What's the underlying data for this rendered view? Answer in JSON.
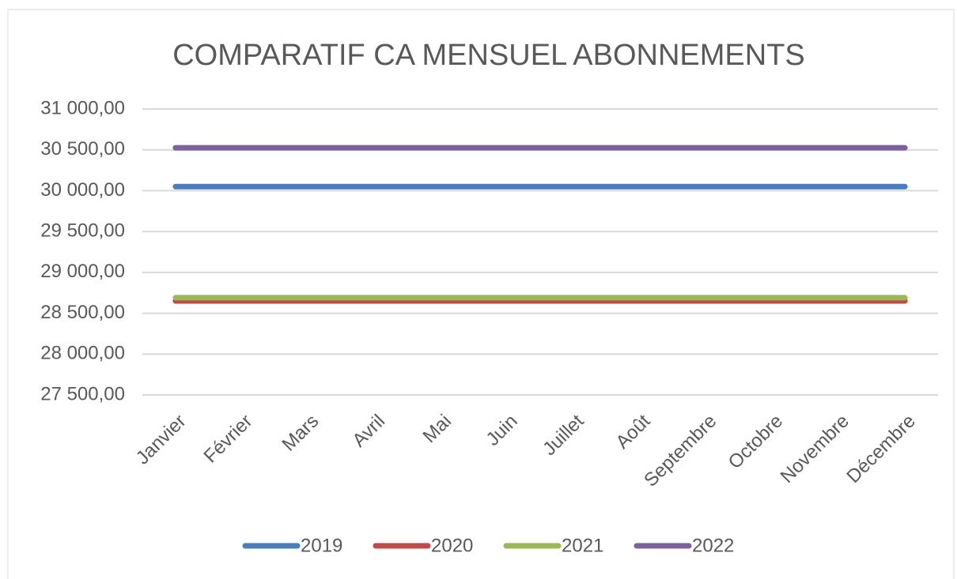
{
  "chart_data": {
    "type": "line",
    "title": "COMPARATIF CA MENSUEL ABONNEMENTS",
    "categories": [
      "Janvier",
      "Février",
      "Mars",
      "Avril",
      "Mai",
      "Juin",
      "Juillet",
      "Août",
      "Septembre",
      "Octobre",
      "Novembre",
      "Décembre"
    ],
    "series": [
      {
        "name": "2019",
        "color": "#4a7ebb",
        "values": [
          30050,
          30050,
          30050,
          30050,
          30050,
          30050,
          30050,
          30050,
          30050,
          30050,
          30050,
          30050
        ]
      },
      {
        "name": "2020",
        "color": "#be4b48",
        "values": [
          28650,
          28650,
          28650,
          28650,
          28650,
          28650,
          28650,
          28650,
          28650,
          28650,
          28650,
          28650
        ]
      },
      {
        "name": "2021",
        "color": "#98b954",
        "values": [
          28690,
          28690,
          28690,
          28690,
          28690,
          28690,
          28690,
          28690,
          28690,
          28690,
          28690,
          28690
        ]
      },
      {
        "name": "2022",
        "color": "#7d60a0",
        "values": [
          30525,
          30525,
          30525,
          30525,
          30525,
          30525,
          30525,
          30525,
          30525,
          30525,
          30525,
          30525
        ]
      }
    ],
    "ylim": [
      27500,
      31000
    ],
    "yticks": [
      {
        "value": 27500,
        "label": "27 500,00"
      },
      {
        "value": 28000,
        "label": "28 000,00"
      },
      {
        "value": 28500,
        "label": "28 500,00"
      },
      {
        "value": 29000,
        "label": "29 000,00"
      },
      {
        "value": 29500,
        "label": "29 500,00"
      },
      {
        "value": 30000,
        "label": "30 000,00"
      },
      {
        "value": 30500,
        "label": "30 500,00"
      },
      {
        "value": 31000,
        "label": "31 000,00"
      }
    ],
    "grid": true,
    "legend": "bottom"
  }
}
